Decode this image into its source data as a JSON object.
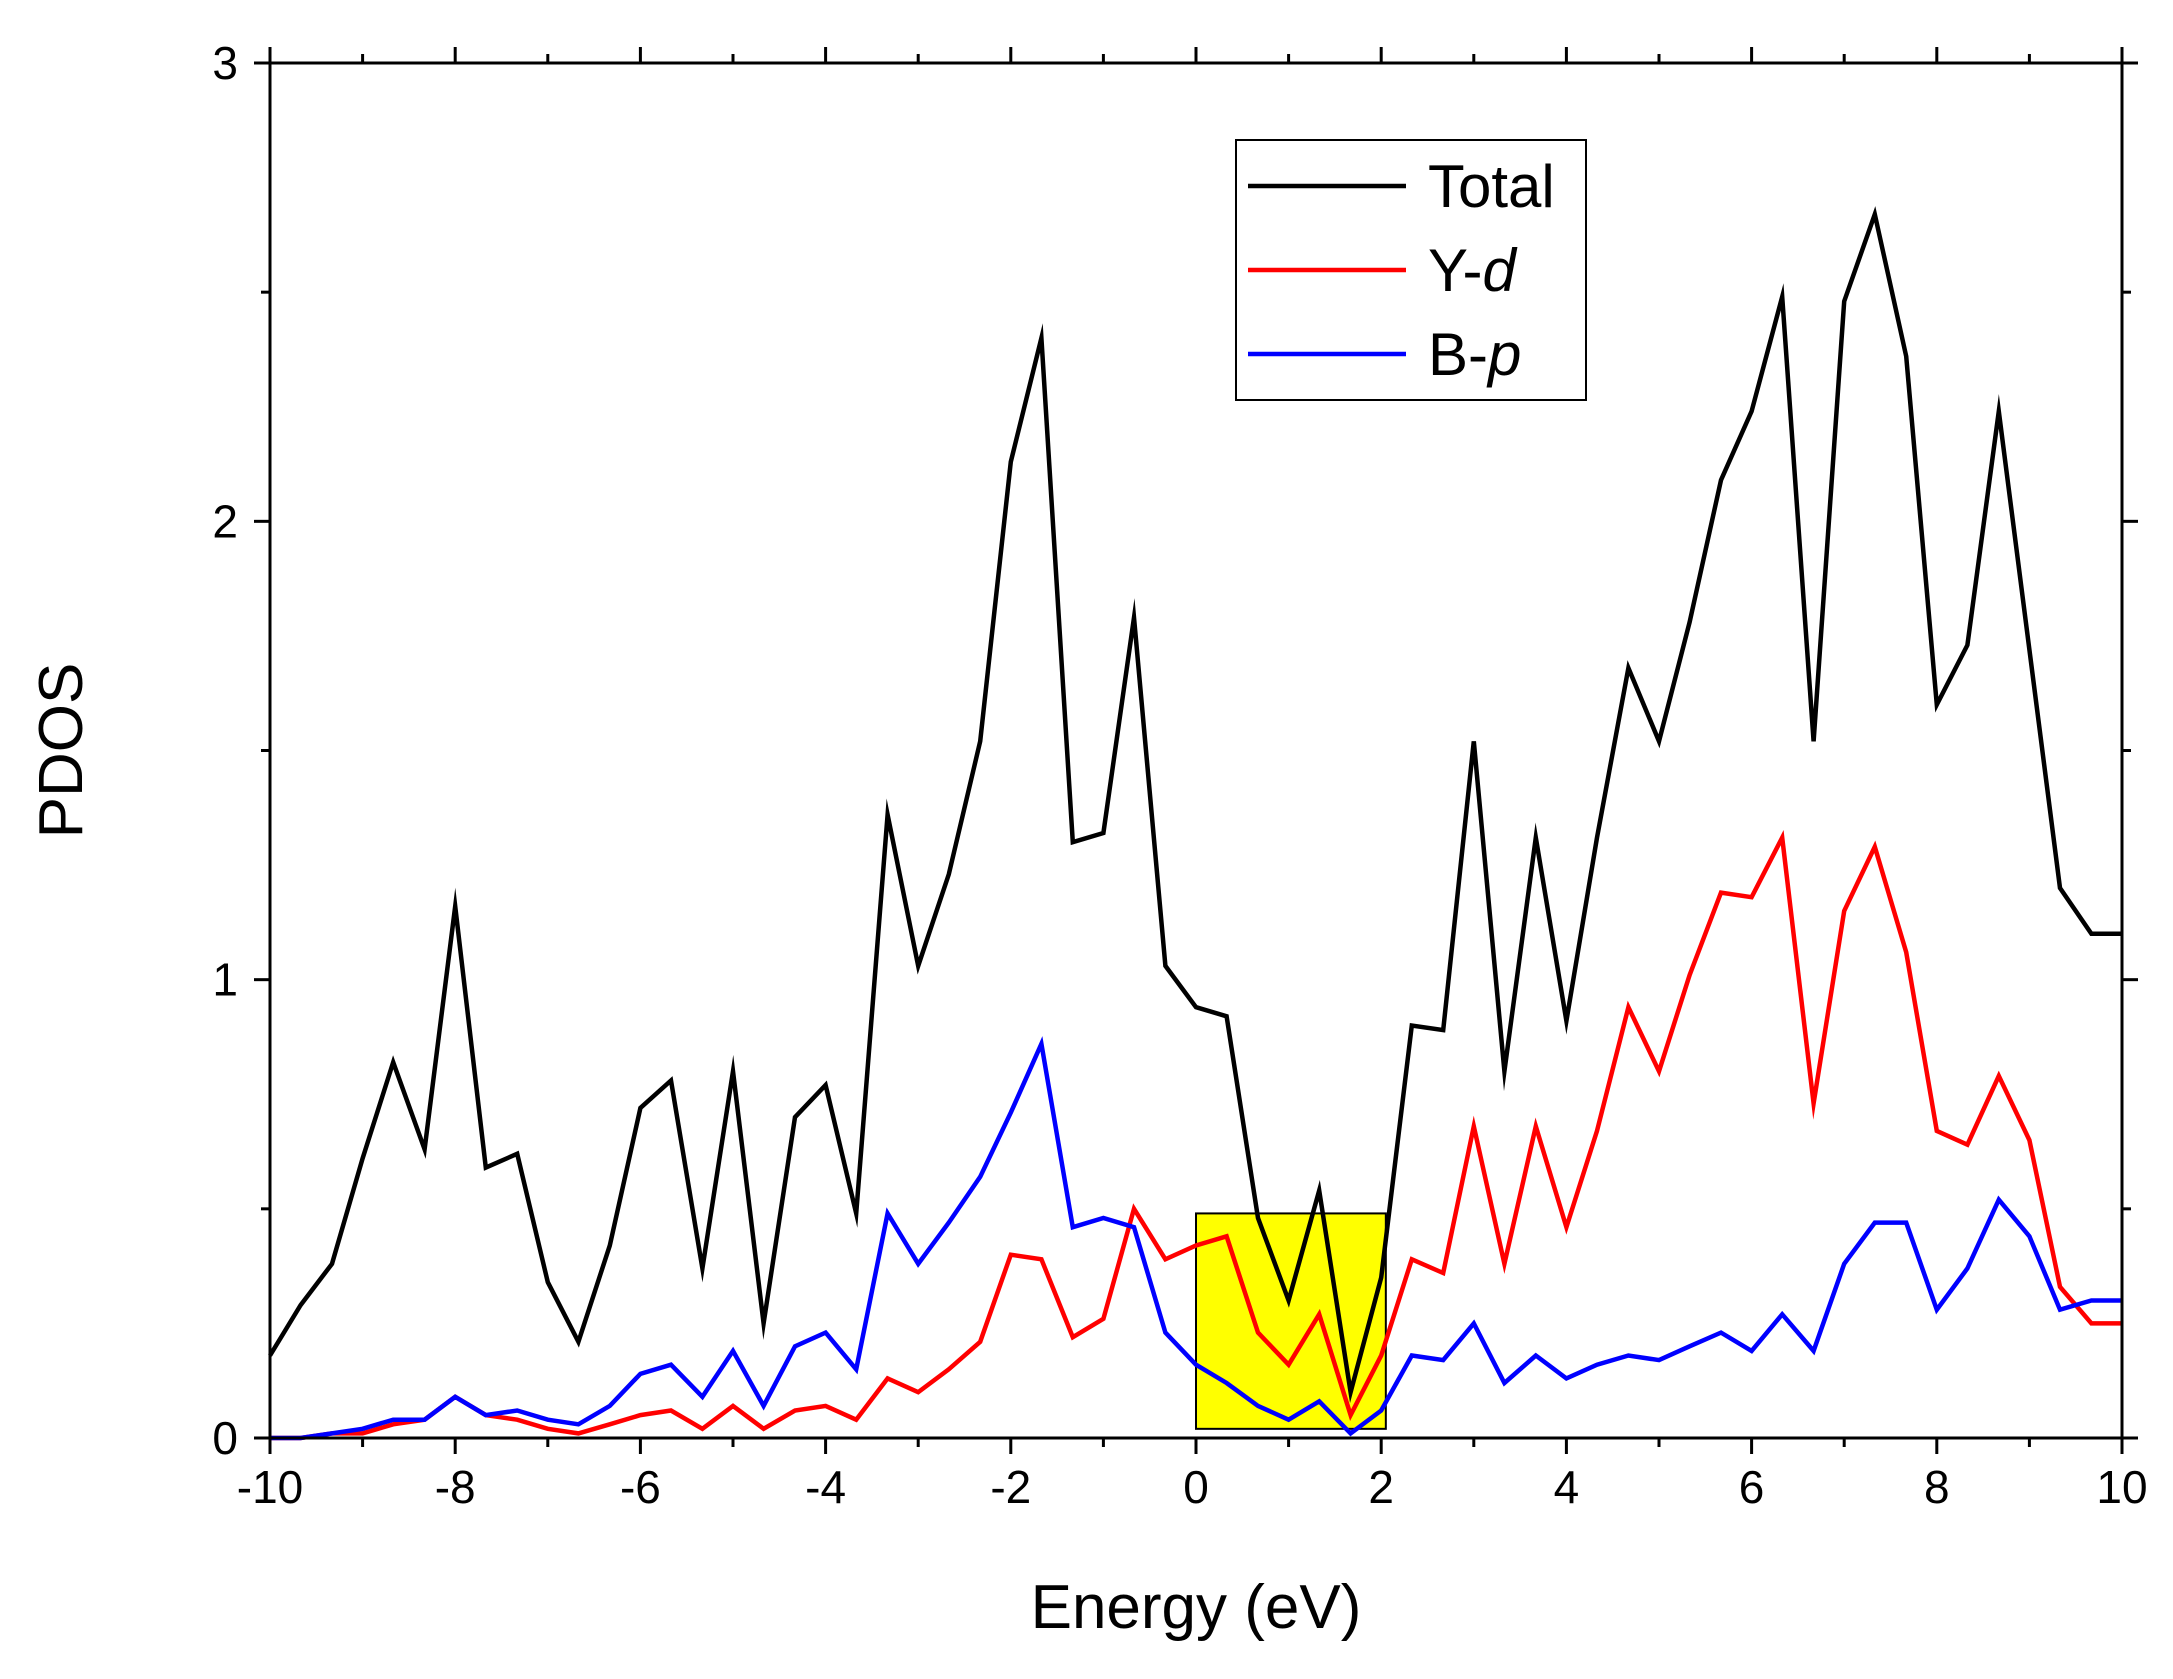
{
  "chart_data": {
    "type": "line",
    "title": "",
    "xlabel": "Energy (eV)",
    "ylabel": "PDOS",
    "xlim": [
      -10,
      10
    ],
    "ylim": [
      0,
      3
    ],
    "x_ticks": [
      -10,
      -8,
      -6,
      -4,
      -2,
      0,
      2,
      4,
      6,
      8,
      10
    ],
    "x_tick_labels": [
      "-10",
      "-8",
      "-6",
      "-4",
      "-2",
      "0",
      "2",
      "4",
      "6",
      "8",
      "10"
    ],
    "y_ticks": [
      0,
      1,
      2,
      3
    ],
    "y_tick_labels": [
      "0",
      "1",
      "2",
      "3"
    ],
    "grid": false,
    "legend_position": "top-center",
    "highlight_region": {
      "x": [
        0,
        2.05
      ],
      "y": [
        0.02,
        0.49
      ],
      "color": "#ffff00"
    },
    "series": [
      {
        "name": "Total",
        "legend_prefix": "Total",
        "legend_suffix": "",
        "color": "#000000",
        "x": [
          -10,
          -9.67,
          -9.33,
          -9,
          -8.67,
          -8.33,
          -8,
          -7.67,
          -7.33,
          -7,
          -6.67,
          -6.33,
          -6,
          -5.67,
          -5.33,
          -5,
          -4.67,
          -4.33,
          -4,
          -3.67,
          -3.33,
          -3,
          -2.67,
          -2.33,
          -2,
          -1.67,
          -1.33,
          -1,
          -0.67,
          -0.33,
          0,
          0.33,
          0.67,
          1,
          1.33,
          1.67,
          2,
          2.33,
          2.67,
          3,
          3.33,
          3.67,
          4,
          4.33,
          4.67,
          5,
          5.33,
          5.67,
          6,
          6.33,
          6.67,
          7,
          7.33,
          7.67,
          8,
          8.33,
          8.67,
          9,
          9.33,
          9.67,
          10
        ],
        "values": [
          0.18,
          0.29,
          0.38,
          0.61,
          0.82,
          0.63,
          1.16,
          0.59,
          0.62,
          0.34,
          0.21,
          0.42,
          0.72,
          0.78,
          0.37,
          0.8,
          0.25,
          0.7,
          0.77,
          0.49,
          1.36,
          1.03,
          1.23,
          1.52,
          2.13,
          2.4,
          1.3,
          1.32,
          1.79,
          1.03,
          0.94,
          0.92,
          0.48,
          0.3,
          0.54,
          0.1,
          0.35,
          0.9,
          0.89,
          1.52,
          0.8,
          1.31,
          0.91,
          1.31,
          1.68,
          1.52,
          1.78,
          2.09,
          2.24,
          2.49,
          1.52,
          2.48,
          2.67,
          2.36,
          1.6,
          1.73,
          2.24,
          1.72,
          1.2,
          1.1,
          1.1
        ]
      },
      {
        "name": "Y-d",
        "legend_prefix": "Y-",
        "legend_suffix": "d",
        "color": "#ff0000",
        "x": [
          -10,
          -9.67,
          -9.33,
          -9,
          -8.67,
          -8.33,
          -8,
          -7.67,
          -7.33,
          -7,
          -6.67,
          -6.33,
          -6,
          -5.67,
          -5.33,
          -5,
          -4.67,
          -4.33,
          -4,
          -3.67,
          -3.33,
          -3,
          -2.67,
          -2.33,
          -2,
          -1.67,
          -1.33,
          -1,
          -0.67,
          -0.33,
          0,
          0.33,
          0.67,
          1,
          1.33,
          1.67,
          2,
          2.33,
          2.67,
          3,
          3.33,
          3.67,
          4,
          4.33,
          4.67,
          5,
          5.33,
          5.67,
          6,
          6.33,
          6.67,
          7,
          7.33,
          7.67,
          8,
          8.33,
          8.67,
          9,
          9.33,
          9.67,
          10
        ],
        "values": [
          0.0,
          0.0,
          0.01,
          0.01,
          0.03,
          0.04,
          0.09,
          0.05,
          0.04,
          0.02,
          0.01,
          0.03,
          0.05,
          0.06,
          0.02,
          0.07,
          0.02,
          0.06,
          0.07,
          0.04,
          0.13,
          0.1,
          0.15,
          0.21,
          0.4,
          0.39,
          0.22,
          0.26,
          0.5,
          0.39,
          0.42,
          0.44,
          0.23,
          0.16,
          0.27,
          0.05,
          0.18,
          0.39,
          0.36,
          0.68,
          0.38,
          0.68,
          0.46,
          0.67,
          0.94,
          0.8,
          1.01,
          1.19,
          1.18,
          1.31,
          0.73,
          1.15,
          1.29,
          1.06,
          0.67,
          0.64,
          0.79,
          0.65,
          0.33,
          0.25,
          0.25
        ]
      },
      {
        "name": "B-p",
        "legend_prefix": "B-",
        "legend_suffix": "p",
        "color": "#0000ff",
        "x": [
          -10,
          -9.67,
          -9.33,
          -9,
          -8.67,
          -8.33,
          -8,
          -7.67,
          -7.33,
          -7,
          -6.67,
          -6.33,
          -6,
          -5.67,
          -5.33,
          -5,
          -4.67,
          -4.33,
          -4,
          -3.67,
          -3.33,
          -3,
          -2.67,
          -2.33,
          -2,
          -1.67,
          -1.33,
          -1,
          -0.67,
          -0.33,
          0,
          0.33,
          0.67,
          1,
          1.33,
          1.67,
          2,
          2.33,
          2.67,
          3,
          3.33,
          3.67,
          4,
          4.33,
          4.67,
          5,
          5.33,
          5.67,
          6,
          6.33,
          6.67,
          7,
          7.33,
          7.67,
          8,
          8.33,
          8.67,
          9,
          9.33,
          9.67,
          10
        ],
        "values": [
          0.0,
          0.0,
          0.01,
          0.02,
          0.04,
          0.04,
          0.09,
          0.05,
          0.06,
          0.04,
          0.03,
          0.07,
          0.14,
          0.16,
          0.09,
          0.19,
          0.07,
          0.2,
          0.23,
          0.15,
          0.49,
          0.38,
          0.47,
          0.57,
          0.71,
          0.86,
          0.46,
          0.48,
          0.46,
          0.23,
          0.16,
          0.12,
          0.07,
          0.04,
          0.08,
          0.01,
          0.06,
          0.18,
          0.17,
          0.25,
          0.12,
          0.18,
          0.13,
          0.16,
          0.18,
          0.17,
          0.2,
          0.23,
          0.19,
          0.27,
          0.19,
          0.38,
          0.47,
          0.47,
          0.28,
          0.37,
          0.52,
          0.44,
          0.28,
          0.3,
          0.3
        ]
      }
    ]
  }
}
